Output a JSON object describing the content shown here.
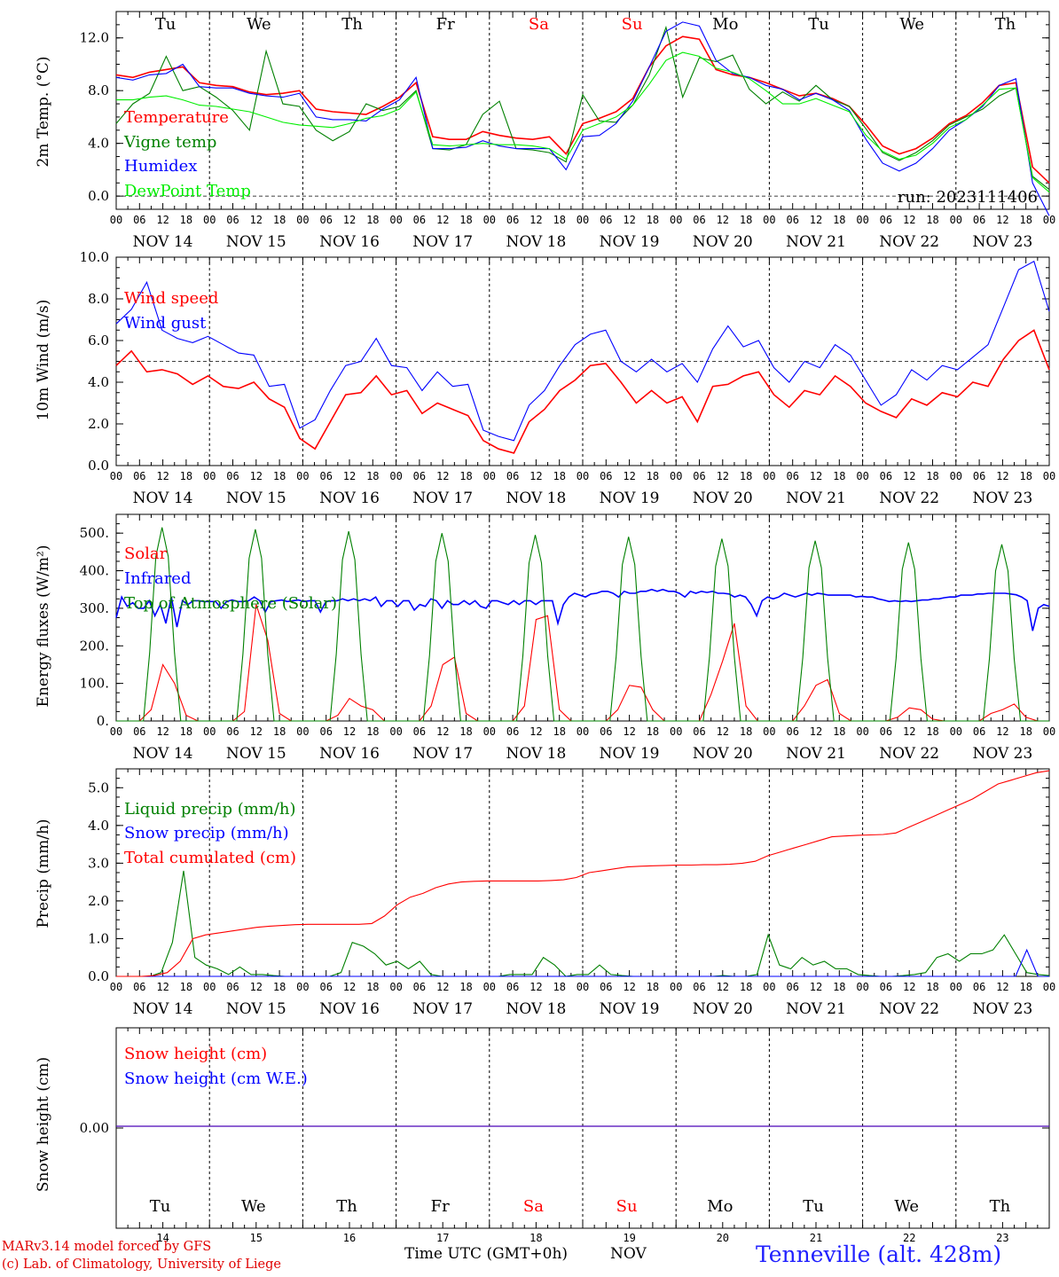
{
  "days": {
    "weekdays": [
      "Tu",
      "We",
      "Th",
      "Fr",
      "Sa",
      "Su",
      "Mo",
      "Tu",
      "We",
      "Th"
    ],
    "weekend_color": "#ff0000",
    "date_labels": [
      "NOV 14",
      "NOV 15",
      "NOV 16",
      "NOV 17",
      "NOV 18",
      "NOV 19",
      "NOV 20",
      "NOV 21",
      "NOV 22",
      "NOV 23"
    ],
    "day_numbers": [
      "14",
      "15",
      "16",
      "17",
      "18",
      "19",
      "20",
      "21",
      "22",
      "23"
    ],
    "hour_ticks": [
      "00",
      "06",
      "12",
      "18"
    ],
    "last_tick": "00"
  },
  "footer": {
    "model_line": "MARv3.14 model forced by GFS",
    "lab_line": "(c) Lab. of Climatology, University of Liege",
    "time_axis": "Time UTC (GMT+0h)",
    "month": "NOV",
    "station": "Tenneville (alt. 428m)"
  },
  "chart_data": [
    {
      "type": "line",
      "ylabel": "2m Temp. (°C)",
      "ylim": [
        -1.0,
        14.0
      ],
      "yticks": [
        0,
        4,
        8,
        12
      ],
      "ytick_labels": [
        "0.0",
        "4.0",
        "8.0",
        "12.0"
      ],
      "reference_line": 0,
      "run_label": "run: 2023111406",
      "x_hours_step": 6,
      "series": [
        {
          "name": "Temperature",
          "color": "#ff0000",
          "values": [
            9.2,
            9.0,
            9.4,
            9.6,
            9.8,
            8.6,
            8.4,
            8.3,
            7.9,
            7.7,
            7.8,
            8.0,
            6.6,
            6.4,
            6.3,
            6.2,
            6.8,
            7.5,
            8.6,
            4.5,
            4.3,
            4.3,
            4.9,
            4.6,
            4.4,
            4.3,
            4.5,
            3.2,
            5.5,
            5.9,
            6.4,
            7.4,
            9.8,
            11.4,
            12.1,
            11.9,
            9.6,
            9.2,
            9.0,
            8.6,
            8.1,
            7.6,
            7.8,
            7.4,
            6.8,
            5.4,
            3.8,
            3.2,
            3.6,
            4.4,
            5.5,
            6.1,
            7.1,
            8.4,
            8.6,
            2.2,
            1.0
          ]
        },
        {
          "name": "Vigne temp",
          "color": "#008000",
          "values": [
            5.5,
            7.0,
            7.8,
            10.6,
            8.0,
            8.3,
            7.5,
            6.5,
            5.0,
            11.0,
            7.0,
            6.8,
            5.0,
            4.2,
            4.9,
            7.0,
            6.5,
            6.8,
            8.0,
            3.6,
            3.5,
            3.9,
            6.2,
            7.2,
            3.6,
            3.5,
            3.3,
            2.6,
            7.7,
            5.7,
            5.6,
            6.9,
            9.2,
            12.8,
            7.5,
            10.5,
            10.2,
            10.7,
            8.1,
            7.0,
            7.9,
            7.2,
            8.4,
            7.3,
            6.8,
            5.1,
            3.3,
            2.7,
            3.3,
            4.2,
            5.4,
            6.0,
            6.6,
            7.6,
            8.2,
            1.5,
            0.5
          ]
        },
        {
          "name": "Humidex",
          "color": "#0000ff",
          "values": [
            9.0,
            8.8,
            9.2,
            9.3,
            10.0,
            8.3,
            8.2,
            8.2,
            7.8,
            7.6,
            7.5,
            7.8,
            6.0,
            5.8,
            5.8,
            5.7,
            6.6,
            7.3,
            9.0,
            3.6,
            3.6,
            3.7,
            4.2,
            3.8,
            3.6,
            3.6,
            3.6,
            2.0,
            4.5,
            4.6,
            5.5,
            7.2,
            9.8,
            12.5,
            13.2,
            12.9,
            10.3,
            9.3,
            9.0,
            8.4,
            8.1,
            7.3,
            7.8,
            7.3,
            6.5,
            4.3,
            2.5,
            1.9,
            2.5,
            3.6,
            5.0,
            5.8,
            6.8,
            8.4,
            8.9,
            1.0,
            -1.5
          ]
        },
        {
          "name": "DewPoint Temp",
          "color": "#00ee00",
          "values": [
            7.3,
            7.3,
            7.5,
            7.6,
            7.3,
            6.9,
            6.8,
            6.6,
            6.4,
            6.0,
            5.6,
            5.4,
            5.3,
            5.2,
            5.5,
            5.9,
            6.1,
            6.6,
            7.9,
            3.9,
            3.8,
            3.9,
            4.0,
            3.9,
            3.9,
            3.8,
            3.6,
            2.8,
            5.0,
            5.5,
            6.0,
            6.9,
            8.5,
            10.3,
            10.9,
            10.6,
            9.7,
            9.4,
            8.9,
            8.0,
            7.0,
            7.0,
            7.4,
            6.9,
            6.4,
            4.6,
            3.4,
            2.8,
            3.1,
            4.0,
            5.2,
            5.8,
            6.9,
            8.1,
            8.2,
            1.4,
            0.3
          ]
        }
      ]
    },
    {
      "type": "line",
      "ylabel": "10m Wind (m/s)",
      "ylim": [
        0.0,
        10.0
      ],
      "yticks": [
        0,
        2,
        4,
        6,
        8,
        10
      ],
      "ytick_labels": [
        "0.0",
        "2.0",
        "4.0",
        "6.0",
        "8.0",
        "10.0"
      ],
      "reference_line": 5,
      "x_hours_step": 6,
      "series": [
        {
          "name": "Wind speed",
          "color": "#ff0000",
          "values": [
            4.8,
            5.5,
            4.5,
            4.6,
            4.4,
            3.9,
            4.3,
            3.8,
            3.7,
            4.0,
            3.2,
            2.8,
            1.3,
            0.8,
            2.1,
            3.4,
            3.5,
            4.3,
            3.4,
            3.6,
            2.5,
            3.0,
            2.7,
            2.4,
            1.2,
            0.8,
            0.6,
            2.1,
            2.7,
            3.6,
            4.1,
            4.8,
            4.9,
            4.0,
            3.0,
            3.6,
            3.0,
            3.3,
            2.1,
            3.8,
            3.9,
            4.3,
            4.5,
            3.4,
            2.8,
            3.6,
            3.4,
            4.3,
            3.8,
            3.0,
            2.6,
            2.3,
            3.2,
            2.9,
            3.5,
            3.3,
            4.0,
            3.8,
            5.1,
            6.0,
            6.5,
            4.6
          ]
        },
        {
          "name": "Wind gust",
          "color": "#0000ff",
          "values": [
            6.8,
            7.5,
            8.8,
            6.5,
            6.1,
            5.9,
            6.2,
            5.8,
            5.4,
            5.3,
            3.8,
            3.9,
            1.8,
            2.2,
            3.6,
            4.8,
            5.0,
            6.1,
            4.8,
            4.7,
            3.6,
            4.5,
            3.8,
            3.9,
            1.7,
            1.4,
            1.2,
            2.9,
            3.6,
            4.8,
            5.8,
            6.3,
            6.5,
            5.0,
            4.5,
            5.1,
            4.5,
            4.9,
            4.0,
            5.6,
            6.7,
            5.7,
            6.0,
            4.7,
            4.0,
            5.0,
            4.7,
            5.8,
            5.3,
            4.1,
            2.9,
            3.4,
            4.6,
            4.1,
            4.8,
            4.6,
            5.2,
            5.8,
            7.6,
            9.4,
            9.8,
            7.4
          ]
        }
      ]
    },
    {
      "type": "line",
      "ylabel": "Energy fluxes (W/m²)",
      "ylim": [
        0,
        550
      ],
      "yticks": [
        0,
        100,
        200,
        300,
        400,
        500
      ],
      "ytick_labels": [
        "0.",
        "100.",
        "200.",
        "300.",
        "400.",
        "500."
      ],
      "x_hours_step": 3,
      "series": [
        {
          "name": "Solar",
          "color": "#ff0000",
          "peaks": [
            {
              "day": 0,
              "profile": [
                0,
                30,
                150,
                100,
                15,
                0
              ]
            },
            {
              "day": 1,
              "profile": [
                0,
                25,
                310,
                215,
                20,
                0
              ]
            },
            {
              "day": 2,
              "profile": [
                0,
                15,
                60,
                40,
                30,
                0
              ]
            },
            {
              "day": 3,
              "profile": [
                0,
                40,
                150,
                170,
                20,
                0
              ]
            },
            {
              "day": 4,
              "profile": [
                0,
                40,
                270,
                280,
                30,
                0
              ]
            },
            {
              "day": 5,
              "profile": [
                0,
                30,
                95,
                90,
                30,
                0
              ]
            },
            {
              "day": 6,
              "profile": [
                0,
                70,
                160,
                260,
                40,
                0
              ]
            },
            {
              "day": 7,
              "profile": [
                0,
                40,
                95,
                110,
                20,
                0
              ]
            },
            {
              "day": 8,
              "profile": [
                0,
                10,
                35,
                30,
                5,
                0
              ]
            },
            {
              "day": 9,
              "profile": [
                0,
                20,
                30,
                45,
                10,
                0
              ]
            }
          ]
        },
        {
          "name": "Infrared",
          "color": "#0000ff",
          "values": [
            275,
            330,
            305,
            315,
            300,
            300,
            320,
            280,
            310,
            260,
            330,
            250,
            320,
            310,
            320,
            320,
            318,
            318,
            318,
            300,
            318,
            322,
            318,
            318,
            320,
            330,
            320,
            290,
            318,
            320,
            322,
            318,
            320,
            322,
            318,
            320,
            320,
            290,
            318,
            320,
            320,
            325,
            320,
            325,
            320,
            325,
            320,
            330,
            305,
            320,
            320,
            305,
            320,
            320,
            295,
            310,
            305,
            325,
            320,
            300,
            320,
            310,
            310,
            320,
            310,
            320,
            305,
            300,
            320,
            320,
            315,
            310,
            320,
            310,
            320,
            320,
            310,
            320,
            320,
            320,
            260,
            310,
            330,
            340,
            335,
            330,
            338,
            340,
            345,
            345,
            340,
            330,
            345,
            340,
            340,
            345,
            345,
            350,
            345,
            350,
            345,
            345,
            340,
            330,
            345,
            340,
            345,
            342,
            345,
            340,
            340,
            338,
            330,
            335,
            330,
            310,
            280,
            320,
            330,
            325,
            330,
            340,
            335,
            330,
            335,
            340,
            335,
            340,
            338,
            335,
            335,
            335,
            335,
            335,
            330,
            332,
            330,
            330,
            325,
            322,
            318,
            320,
            318,
            320,
            318,
            320,
            322,
            322,
            325,
            325,
            328,
            330,
            330,
            335,
            335,
            335,
            338,
            338,
            340,
            340,
            340,
            340,
            338,
            336,
            330,
            320,
            240,
            300,
            310,
            305
          ]
        },
        {
          "name": "Top of Atmosphere (Solar)",
          "color": "#008000",
          "peak_values": [
            515,
            510,
            505,
            500,
            495,
            490,
            485,
            480,
            475,
            470
          ]
        }
      ]
    },
    {
      "type": "line",
      "ylabel": "Precip (mm/h)",
      "ylim": [
        0.0,
        5.5
      ],
      "yticks": [
        0,
        1,
        2,
        3,
        4,
        5
      ],
      "ytick_labels": [
        "0.0",
        "1.0",
        "2.0",
        "3.0",
        "4.0",
        "5.0"
      ],
      "x_hours_step": 3,
      "series": [
        {
          "name": "Liquid precip (mm/h)",
          "color": "#008000",
          "values": [
            0,
            0,
            0,
            0,
            0.1,
            0.9,
            2.8,
            0.5,
            0.3,
            0.2,
            0.05,
            0.25,
            0.05,
            0.05,
            0.02,
            0,
            0,
            0,
            0,
            0,
            0.1,
            0.9,
            0.8,
            0.6,
            0.3,
            0.4,
            0.2,
            0.4,
            0.05,
            0,
            0,
            0,
            0,
            0,
            0,
            0.05,
            0.05,
            0.05,
            0.5,
            0.3,
            0,
            0.05,
            0.05,
            0.3,
            0.05,
            0.02,
            0,
            0,
            0,
            0,
            0,
            0,
            0,
            0,
            0.02,
            0,
            0,
            0.05,
            1.1,
            0.3,
            0.2,
            0.5,
            0.3,
            0.4,
            0.2,
            0.2,
            0.05,
            0.02,
            0,
            0,
            0.02,
            0.05,
            0.1,
            0.5,
            0.6,
            0.4,
            0.6,
            0.6,
            0.7,
            1.1,
            0.6,
            0.1,
            0.05,
            0.02
          ]
        },
        {
          "name": "Snow precip (mm/h)",
          "color": "#0000ff",
          "values": [
            0,
            0,
            0,
            0,
            0,
            0,
            0,
            0,
            0,
            0,
            0,
            0,
            0,
            0,
            0,
            0,
            0,
            0,
            0,
            0,
            0,
            0,
            0,
            0,
            0,
            0,
            0,
            0,
            0,
            0,
            0,
            0,
            0,
            0,
            0,
            0,
            0,
            0,
            0,
            0,
            0,
            0,
            0,
            0,
            0,
            0,
            0,
            0,
            0,
            0,
            0,
            0,
            0,
            0,
            0,
            0,
            0,
            0,
            0,
            0,
            0,
            0,
            0,
            0,
            0,
            0,
            0,
            0,
            0,
            0,
            0,
            0,
            0,
            0,
            0,
            0,
            0,
            0,
            0,
            0,
            0,
            0.7,
            0,
            0
          ]
        },
        {
          "name": "Total cumulated (cm)",
          "color": "#ff0000",
          "values": [
            0,
            0,
            0,
            0.02,
            0.1,
            0.4,
            1.0,
            1.1,
            1.15,
            1.2,
            1.25,
            1.3,
            1.33,
            1.35,
            1.37,
            1.38,
            1.38,
            1.38,
            1.38,
            1.38,
            1.4,
            1.6,
            1.9,
            2.1,
            2.2,
            2.35,
            2.45,
            2.5,
            2.52,
            2.53,
            2.53,
            2.53,
            2.53,
            2.53,
            2.54,
            2.56,
            2.62,
            2.75,
            2.8,
            2.85,
            2.9,
            2.92,
            2.93,
            2.94,
            2.95,
            2.95,
            2.96,
            2.96,
            2.97,
            3.0,
            3.05,
            3.2,
            3.3,
            3.4,
            3.5,
            3.6,
            3.7,
            3.72,
            3.74,
            3.75,
            3.76,
            3.8,
            3.95,
            4.1,
            4.25,
            4.4,
            4.55,
            4.7,
            4.9,
            5.1,
            5.2,
            5.3,
            5.4,
            5.45
          ]
        }
      ]
    },
    {
      "type": "line",
      "ylabel": "Snow height (cm)",
      "yticks": [
        0
      ],
      "ytick_labels": [
        "0.00"
      ],
      "series": [
        {
          "name": "Snow height (cm)",
          "color": "#ff0000",
          "values": [
            0,
            0
          ]
        },
        {
          "name": "Snow height (cm W.E.)",
          "color": "#0000ff",
          "values": [
            0,
            0
          ]
        }
      ]
    }
  ]
}
